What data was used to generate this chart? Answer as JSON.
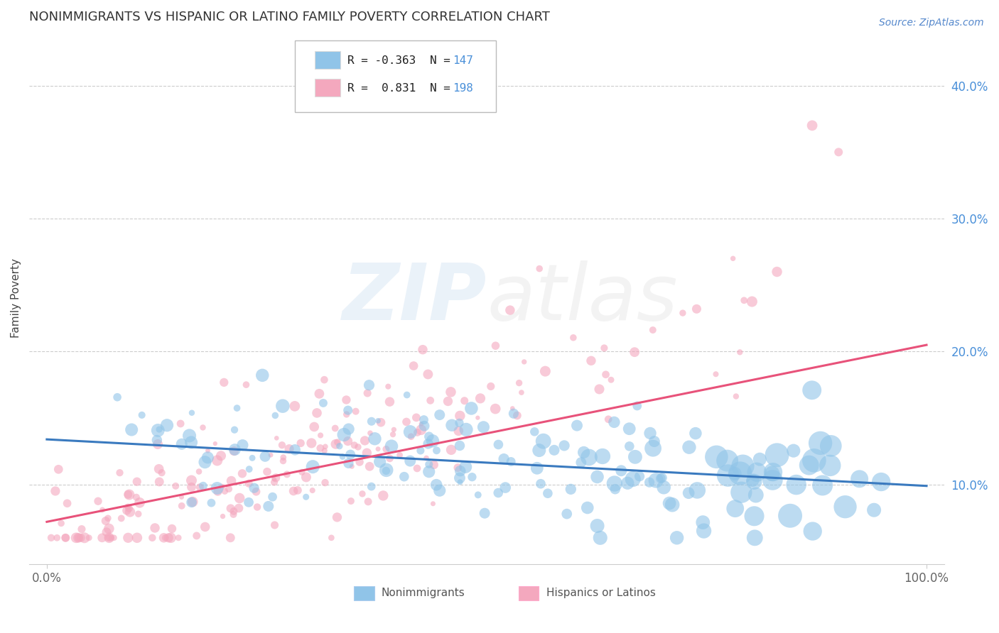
{
  "title": "NONIMMIGRANTS VS HISPANIC OR LATINO FAMILY POVERTY CORRELATION CHART",
  "source_text": "Source: ZipAtlas.com",
  "xlabel": "",
  "ylabel": "Family Poverty",
  "legend_labels": [
    "Nonimmigrants",
    "Hispanics or Latinos"
  ],
  "R_blue": -0.363,
  "N_blue": 147,
  "R_pink": 0.831,
  "N_pink": 198,
  "blue_color": "#90c4e8",
  "pink_color": "#f4a8be",
  "blue_line_color": "#3a7abf",
  "pink_line_color": "#e8527a",
  "xlim": [
    -0.02,
    1.02
  ],
  "ylim": [
    0.04,
    0.44
  ],
  "xticks": [
    0.0,
    1.0
  ],
  "yticks": [
    0.1,
    0.2,
    0.3,
    0.4
  ],
  "grid_color": "#cccccc",
  "background_color": "#ffffff",
  "watermark_zip_color": "#90b8e0",
  "watermark_atlas_color": "#c0c0c0",
  "title_fontsize": 13,
  "axis_label_fontsize": 11,
  "tick_fontsize": 12,
  "legend_fontsize": 12,
  "source_fontsize": 10,
  "blue_line_start_y": 0.134,
  "blue_line_end_y": 0.099,
  "pink_line_start_y": 0.072,
  "pink_line_end_y": 0.205
}
